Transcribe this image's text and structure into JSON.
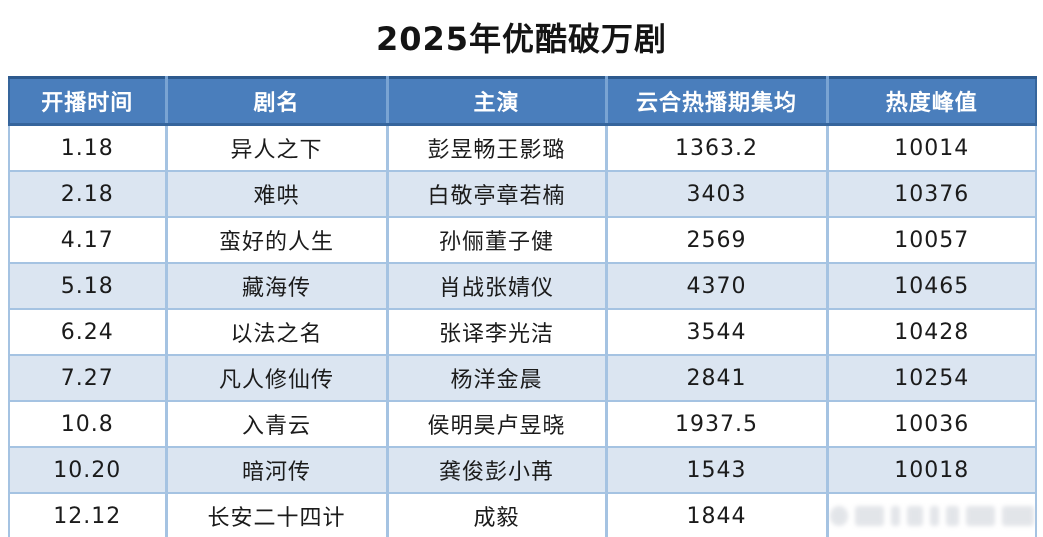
{
  "title": "2025年优酷破万剧",
  "colors": {
    "header_bg": "#4a7ebc",
    "header_text": "#ffffff",
    "header_top_border": "#2d5a8e",
    "grid_line": "#a5c3e2",
    "stripe_row_bg": "#dbe5f1",
    "body_text": "#1b1b1b",
    "bottom_bar": "#a9bdd0"
  },
  "chart_data": {
    "type": "table",
    "title": "2025年优酷破万剧",
    "columns": [
      "开播时间",
      "剧名",
      "主演",
      "云合热播期集均",
      "热度峰值"
    ],
    "rows": [
      [
        "1.18",
        "异人之下",
        "彭昱畅王影璐",
        "1363.2",
        "10014"
      ],
      [
        "2.18",
        "难哄",
        "白敬亭章若楠",
        "3403",
        "10376"
      ],
      [
        "4.17",
        "蛮好的人生",
        "孙俪董子健",
        "2569",
        "10057"
      ],
      [
        "5.18",
        "藏海传",
        "肖战张婧仪",
        "4370",
        "10465"
      ],
      [
        "6.24",
        "以法之名",
        "张译李光洁",
        "3544",
        "10428"
      ],
      [
        "7.27",
        "凡人修仙传",
        "杨洋金晨",
        "2841",
        "10254"
      ],
      [
        "10.8",
        "入青云",
        "侯明昊卢昱晓",
        "1937.5",
        "10036"
      ],
      [
        "10.20",
        "暗河传",
        "龚俊彭小苒",
        "1543",
        "10018"
      ],
      [
        "12.12",
        "长安二十四计",
        "成毅",
        "1844",
        ""
      ]
    ],
    "layout_hints": {
      "striped_rows": "even rows light blue",
      "last_cell_watermark": true
    }
  }
}
